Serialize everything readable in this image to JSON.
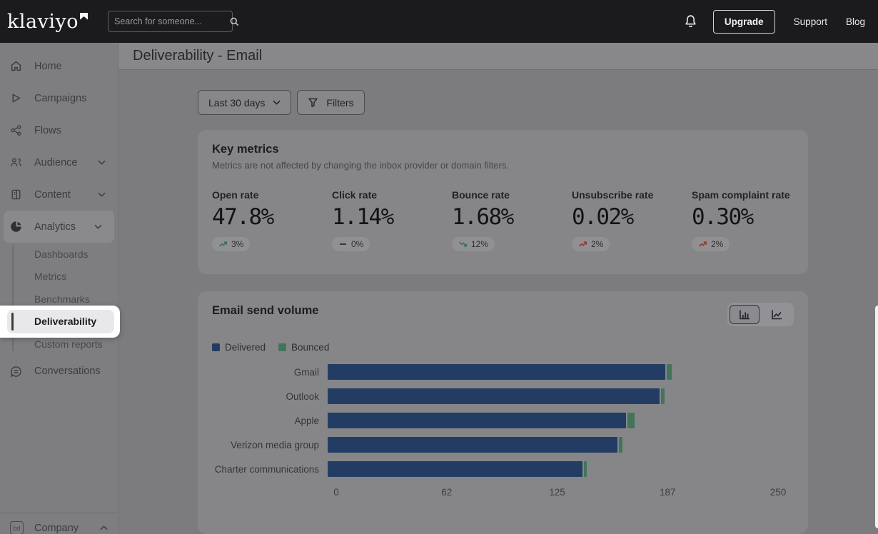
{
  "topbar": {
    "logo": "klaviyo",
    "search_placeholder": "Search for someone...",
    "upgrade_label": "Upgrade",
    "support_label": "Support",
    "blog_label": "Blog"
  },
  "sidebar": {
    "items": [
      {
        "label": "Home"
      },
      {
        "label": "Campaigns"
      },
      {
        "label": "Flows"
      },
      {
        "label": "Audience",
        "expandable": true
      },
      {
        "label": "Content",
        "expandable": true
      },
      {
        "label": "Analytics",
        "expandable": true,
        "active": true
      }
    ],
    "analytics_children": [
      {
        "label": "Dashboards"
      },
      {
        "label": "Metrics"
      },
      {
        "label": "Benchmarks"
      },
      {
        "label": "Deliverability",
        "selected": true,
        "spotlighted": true
      },
      {
        "label": "Custom reports"
      }
    ],
    "conversations_label": "Conversations",
    "company_label": "Company"
  },
  "page": {
    "title": "Deliverability - Email"
  },
  "controls": {
    "date_range": "Last 30 days",
    "filters_label": "Filters"
  },
  "key_metrics": {
    "title": "Key metrics",
    "subtitle": "Metrics are not affected by changing the inbox provider or domain filters.",
    "items": [
      {
        "label": "Open rate",
        "value": "47.8%",
        "delta": "3%",
        "trend": "up",
        "sentiment": "positive"
      },
      {
        "label": "Click rate",
        "value": "1.14%",
        "delta": "0%",
        "trend": "flat",
        "sentiment": "neutral"
      },
      {
        "label": "Bounce rate",
        "value": "1.68%",
        "delta": "12%",
        "trend": "down",
        "sentiment": "positive"
      },
      {
        "label": "Unsubscribe rate",
        "value": "0.02%",
        "delta": "2%",
        "trend": "up",
        "sentiment": "negative"
      },
      {
        "label": "Spam complaint rate",
        "value": "0.30%",
        "delta": "2%",
        "trend": "up",
        "sentiment": "negative"
      }
    ]
  },
  "chart_data": {
    "type": "bar",
    "orientation": "horizontal",
    "stacked": true,
    "title": "Email send volume",
    "categories": [
      "Gmail",
      "Outlook",
      "Apple",
      "Verizon media group",
      "Charter communications"
    ],
    "series": [
      {
        "name": "Delivered",
        "color": "#233c63",
        "values": [
          191,
          188,
          169,
          164,
          144
        ]
      },
      {
        "name": "Bounced",
        "color": "#42745a",
        "values": [
          3,
          2,
          4,
          2,
          2
        ]
      }
    ],
    "x_ticks": [
      0,
      62,
      125,
      187,
      250
    ],
    "xlim": [
      0,
      250
    ],
    "legend_position": "top",
    "grid": false
  },
  "colors": {
    "sentiment_positive": "#3c7152",
    "sentiment_negative": "#8f3a2e",
    "sentiment_neutral": "#39393d",
    "topbar_bg": "#1b1b1e",
    "spotlight_bg": "#ffffff"
  }
}
